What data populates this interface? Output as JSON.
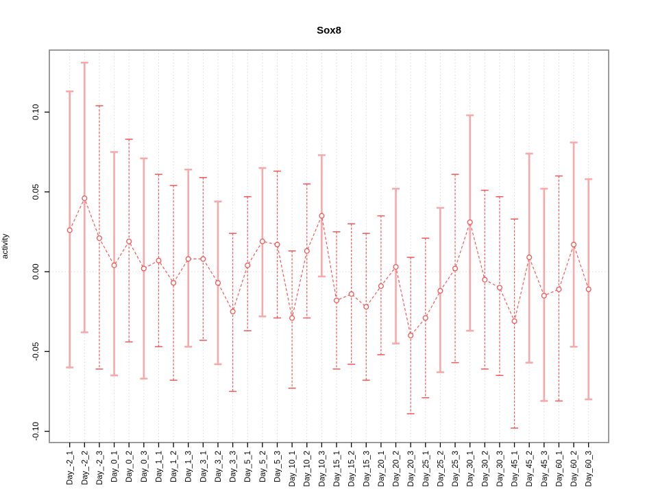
{
  "title": "Sox8",
  "y_axis": {
    "label": "activity",
    "tick_labels": [
      "0.10",
      "0.05",
      "0.00",
      "-0.05",
      "-0.10"
    ],
    "tick_values": [
      0.1,
      0.05,
      0.0,
      -0.05,
      -0.1
    ]
  },
  "colors": {
    "series_red": "#f25555",
    "pale_bar_red": "#f7a8a8",
    "grid_gray": "#d8d8d8",
    "frame_gray": "#808080",
    "text_black": "#000000",
    "background": "#ffffff"
  },
  "chart_data": {
    "type": "line",
    "subtype": "means-with-error-bars",
    "title": "Sox8",
    "xlabel": "",
    "ylabel": "activity",
    "ylim": [
      -0.108,
      0.14
    ],
    "grid": "dotted vertical gridline at every category; dotted horizontal line at y=0",
    "legend": "none",
    "marker": "open-circle",
    "line_style": "dashed",
    "categories": [
      "Day_-2_1",
      "Day_-2_2",
      "Day_-2_3",
      "Day_0_1",
      "Day_0_2",
      "Day_0_3",
      "Day_1_1",
      "Day_1_2",
      "Day_1_3",
      "Day_3_1",
      "Day_3_2",
      "Day_3_3",
      "Day_5_1",
      "Day_5_2",
      "Day_5_3",
      "Day_10_1",
      "Day_10_2",
      "Day_10_3",
      "Day_15_1",
      "Day_15_2",
      "Day_15_3",
      "Day_20_1",
      "Day_20_2",
      "Day_20_3",
      "Day_25_1",
      "Day_25_2",
      "Day_25_3",
      "Day_30_1",
      "Day_30_2",
      "Day_30_3",
      "Day_45_1",
      "Day_45_2",
      "Day_45_3",
      "Day_60_1",
      "Day_60_2",
      "Day_60_3"
    ],
    "series": [
      {
        "name": "activity",
        "values": [
          0.026,
          0.046,
          0.021,
          0.004,
          0.019,
          0.002,
          0.007,
          -0.007,
          0.008,
          0.008,
          -0.007,
          -0.025,
          0.004,
          0.019,
          0.017,
          -0.029,
          0.013,
          0.035,
          -0.018,
          -0.014,
          -0.022,
          -0.009,
          0.003,
          -0.04,
          -0.029,
          -0.012,
          0.002,
          0.031,
          -0.005,
          -0.01,
          -0.031,
          0.009,
          -0.015,
          -0.011,
          0.017,
          -0.011
        ],
        "upper": [
          0.113,
          0.131,
          0.104,
          0.075,
          0.083,
          0.071,
          0.061,
          0.054,
          0.064,
          0.059,
          0.044,
          0.024,
          0.047,
          0.065,
          0.063,
          0.013,
          0.055,
          0.073,
          0.025,
          0.03,
          0.024,
          0.035,
          0.052,
          0.009,
          0.021,
          0.04,
          0.061,
          0.098,
          0.051,
          0.047,
          0.033,
          0.074,
          0.052,
          0.06,
          0.081,
          0.058
        ],
        "lower": [
          -0.06,
          -0.038,
          -0.061,
          -0.065,
          -0.044,
          -0.067,
          -0.047,
          -0.068,
          -0.047,
          -0.043,
          -0.058,
          -0.075,
          -0.037,
          -0.028,
          -0.029,
          -0.073,
          -0.029,
          -0.003,
          -0.061,
          -0.058,
          -0.068,
          -0.052,
          -0.045,
          -0.089,
          -0.079,
          -0.063,
          -0.057,
          -0.037,
          -0.061,
          -0.065,
          -0.098,
          -0.057,
          -0.081,
          -0.081,
          -0.047,
          -0.08
        ],
        "bar_styles": [
          "solid",
          "solid",
          "dashed",
          "solid",
          "dashed",
          "solid",
          "dashed",
          "dashed",
          "solid",
          "dashed",
          "solid",
          "dashed",
          "dashed",
          "solid",
          "dashed",
          "dashed",
          "dashed",
          "solid",
          "dashed",
          "dashed",
          "dashed",
          "dashed",
          "solid",
          "dashed",
          "dashed",
          "solid",
          "dashed",
          "solid",
          "dashed",
          "dashed",
          "dashed",
          "solid",
          "solid",
          "dashed",
          "solid",
          "solid"
        ]
      }
    ]
  }
}
